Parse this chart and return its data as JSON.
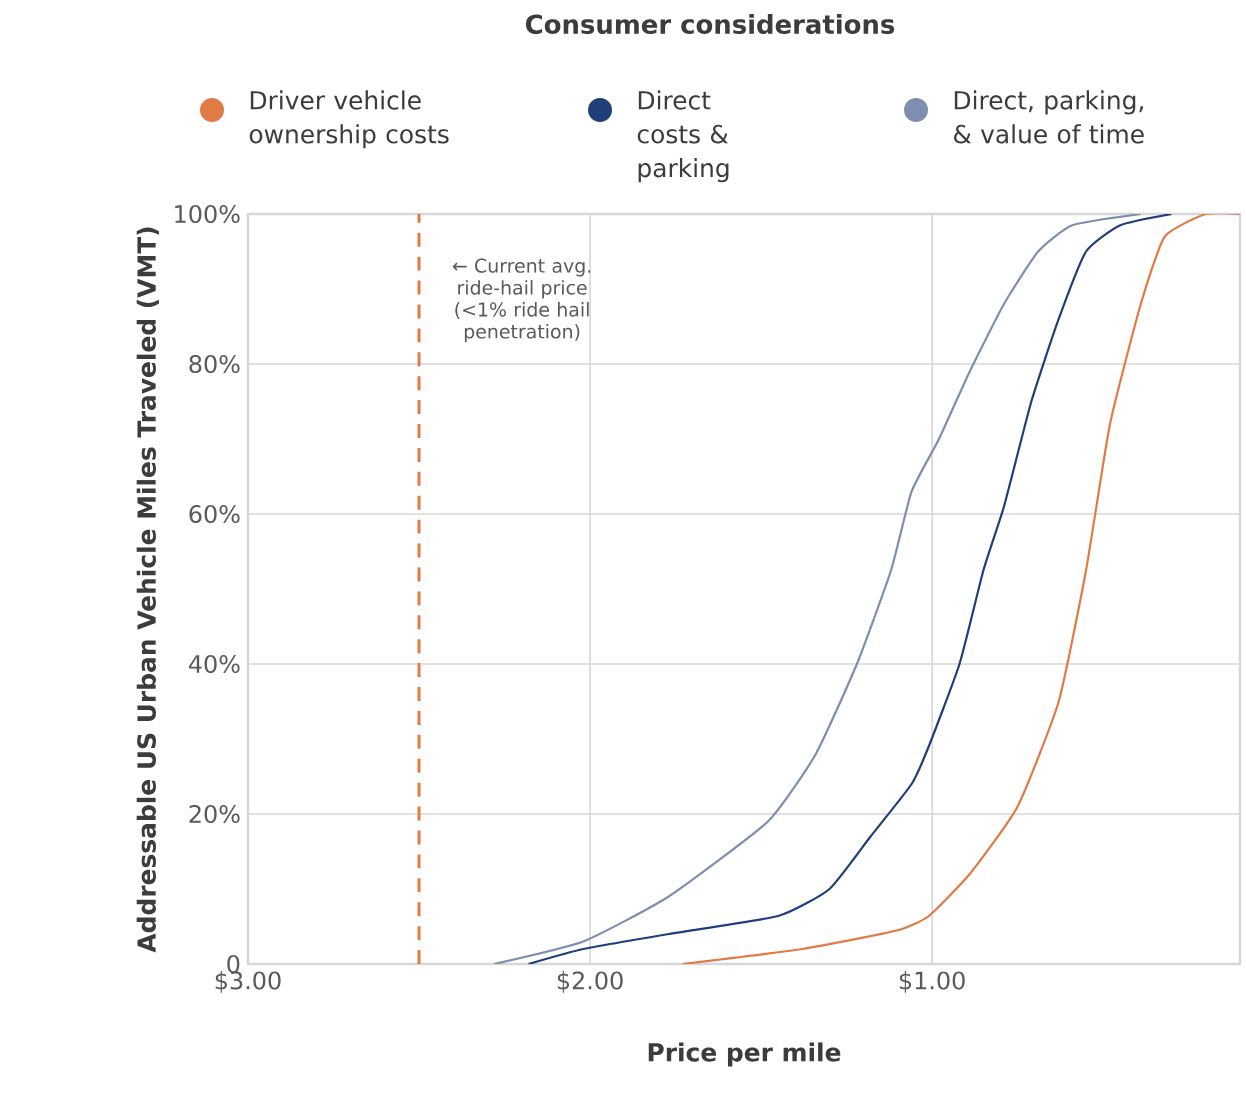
{
  "chart_data": {
    "type": "line",
    "title": "Consumer considerations",
    "xlabel": "Price per mile",
    "ylabel": "Addressable US Urban Vehicle Miles Traveled (VMT)",
    "xlim": [
      3.0,
      0.1
    ],
    "xticks": [
      {
        "value": 3,
        "label": "$3.00"
      },
      {
        "value": 2,
        "label": "$2.00"
      },
      {
        "value": 1,
        "label": "$1.00"
      }
    ],
    "ylim": [
      0,
      100
    ],
    "yticks": [
      0,
      {
        "value": 20,
        "label": "20%"
      },
      {
        "value": 40,
        "label": "40%"
      },
      {
        "value": 60,
        "label": "60%"
      },
      {
        "value": 80,
        "label": "80%"
      },
      {
        "value": 100,
        "label": "100%"
      }
    ],
    "grid": true,
    "legend": "top",
    "marker": "none",
    "line_style": "solid",
    "series": [
      {
        "name": "Driver vehicle ownership costs",
        "color": "#e07b45",
        "x": [
          1.73,
          1.38,
          1.1,
          1.01,
          0.89,
          0.75,
          0.63,
          0.55,
          0.48,
          0.39,
          0.32,
          0.2,
          0.1
        ],
        "values": [
          0,
          2,
          4.5,
          6.4,
          12,
          21,
          35,
          52.5,
          72,
          88,
          97,
          100,
          100
        ]
      },
      {
        "name": "Direct costs & parking",
        "color": "#1f3f7a",
        "x": [
          2.18,
          2.02,
          1.77,
          1.45,
          1.3,
          1.18,
          1.06,
          1.01,
          0.92,
          0.85,
          0.79,
          0.71,
          0.63,
          0.55,
          0.45,
          0.3
        ],
        "values": [
          0,
          2,
          4,
          6.4,
          10,
          17,
          24,
          29,
          40,
          52.5,
          61,
          75,
          86,
          95,
          98.5,
          100
        ]
      },
      {
        "name": "Direct, parking, & value of time",
        "color": "#7f8db0",
        "x": [
          2.28,
          2.02,
          1.77,
          1.48,
          1.34,
          1.22,
          1.12,
          1.06,
          0.98,
          0.89,
          0.79,
          0.69,
          0.59,
          0.39
        ],
        "values": [
          0,
          3,
          9,
          19,
          28,
          40,
          52.5,
          63,
          70,
          79,
          88,
          95,
          98.5,
          100
        ]
      }
    ],
    "ref_lines": [
      {
        "axis": "x",
        "value": 2.5,
        "label": "← Current avg. ride-hail price (<1% ride hail penetration)",
        "color": "#e07b45",
        "line_style": "dashed"
      }
    ]
  }
}
